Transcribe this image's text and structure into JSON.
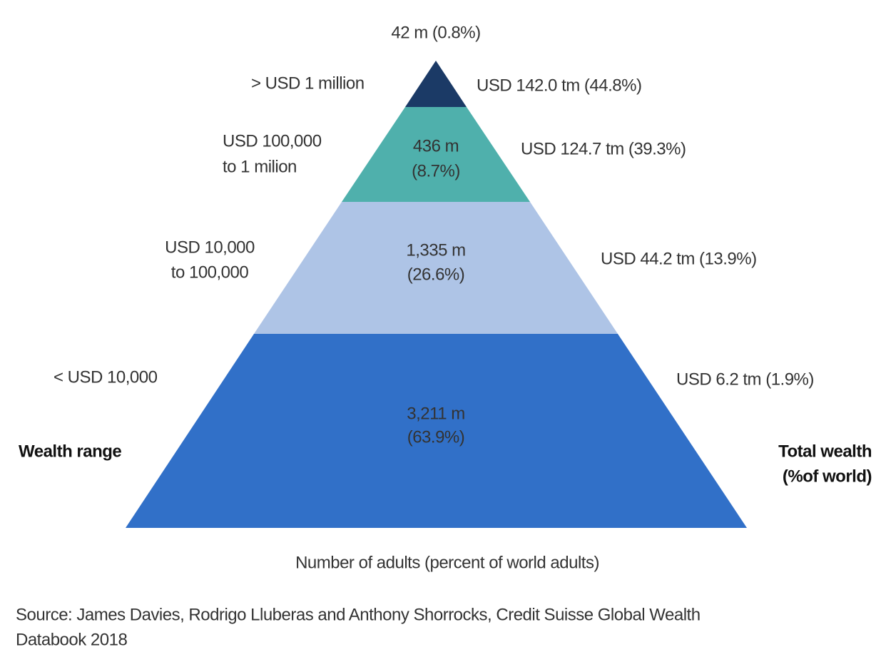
{
  "tiers": [
    {
      "range": [
        "> USD 1 million"
      ],
      "adults": [
        "42 m (0.8%)"
      ],
      "wealth": "USD 142.0 tm (44.8%)"
    },
    {
      "range": [
        "USD 100,000",
        "to 1 milion"
      ],
      "adults": [
        "436 m",
        "(8.7%)"
      ],
      "wealth": "USD 124.7 tm (39.3%)"
    },
    {
      "range": [
        "USD 10,000",
        "to 100,000"
      ],
      "adults": [
        "1,335 m",
        "(26.6%)"
      ],
      "wealth": "USD 44.2 tm (13.9%)"
    },
    {
      "range": [
        "< USD 10,000"
      ],
      "adults": [
        "3,211 m",
        "(63.9%)"
      ],
      "wealth": "USD 6.2 tm (1.9%)"
    }
  ],
  "left_heading": "Wealth range",
  "right_heading": [
    "Total wealth",
    "(%of world)"
  ],
  "x_label": "Number of adults (percent of world adults)",
  "source": [
    "Source: James Davies, Rodrigo Lluberas and Anthony Shorrocks, Credit Suisse Global Wealth",
    "Databook 2018"
  ]
}
